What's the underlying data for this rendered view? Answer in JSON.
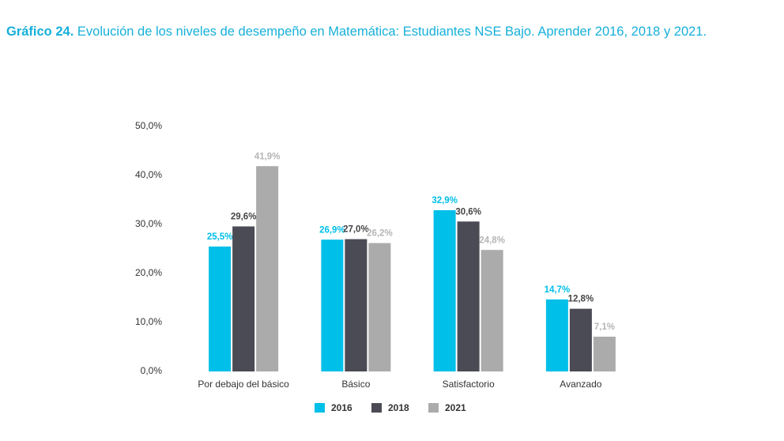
{
  "chart_data": {
    "type": "bar",
    "title_label": "Gráfico 24.",
    "title": "Evolución de los niveles de desempeño en Matemática: Estudiantes NSE Bajo. Aprender  2016, 2018 y 2021.",
    "categories": [
      "Por debajo del básico",
      "Básico",
      "Satisfactorio",
      "Avanzado"
    ],
    "series": [
      {
        "name": "2016",
        "color": "#00bfe8",
        "label_color": "#00bfe8",
        "values": [
          25.5,
          26.9,
          32.9,
          14.7
        ],
        "value_labels": [
          "25,5%",
          "26,9%",
          "32,9%",
          "14,7%"
        ]
      },
      {
        "name": "2018",
        "color": "#4a4b54",
        "label_color": "#444444",
        "values": [
          29.6,
          27.0,
          30.6,
          12.8
        ],
        "value_labels": [
          "29,6%",
          "27,0%",
          "30,6%",
          "12,8%"
        ]
      },
      {
        "name": "2021",
        "color": "#ababab",
        "label_color": "#b5b5b5",
        "values": [
          41.9,
          26.2,
          24.8,
          7.1
        ],
        "value_labels": [
          "41,9%",
          "26,2%",
          "24,8%",
          "7,1%"
        ]
      }
    ],
    "ylim": [
      0,
      50
    ],
    "yticks": [
      {
        "value": 0,
        "label": "0,0%"
      },
      {
        "value": 10,
        "label": "10,0%"
      },
      {
        "value": 20,
        "label": "20,0%"
      },
      {
        "value": 30,
        "label": "30,0%"
      },
      {
        "value": 40,
        "label": "40,0%"
      },
      {
        "value": 50,
        "label": "50,0%"
      }
    ],
    "grid": false,
    "legend": "bottom"
  }
}
